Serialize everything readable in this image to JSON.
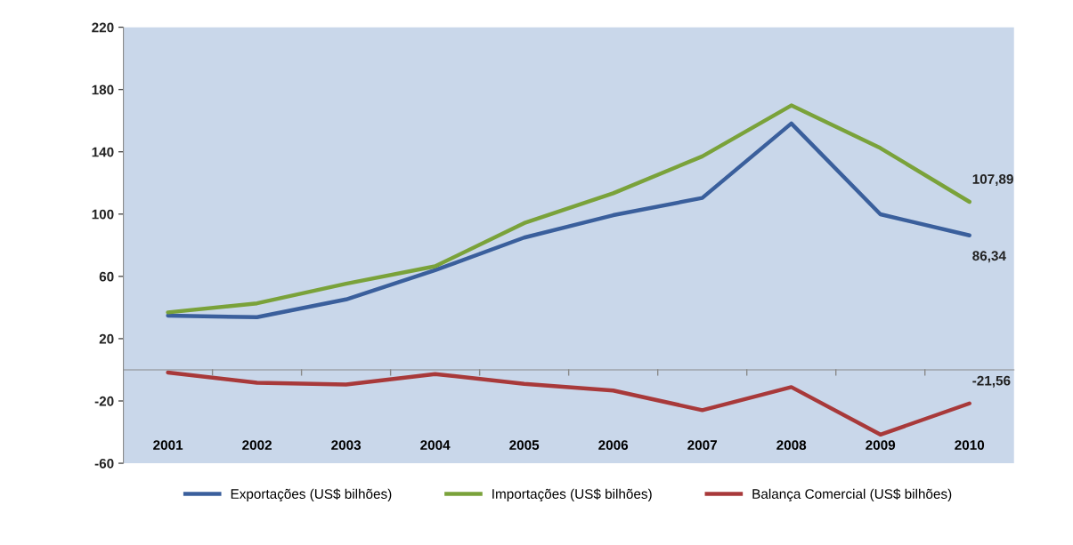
{
  "chart_data": {
    "type": "line",
    "categories": [
      "2001",
      "2002",
      "2003",
      "2004",
      "2005",
      "2006",
      "2007",
      "2008",
      "2009",
      "2010"
    ],
    "series": [
      {
        "name": "Exportações (US$ bilhões)",
        "color": "#3a5f9c",
        "values": [
          34.8,
          33.8,
          45.2,
          64.0,
          84.9,
          99.3,
          110.4,
          158.2,
          99.9,
          86.34
        ],
        "value_labels": [
          null,
          null,
          null,
          null,
          null,
          null,
          null,
          null,
          null,
          "86,34"
        ]
      },
      {
        "name": "Importações (US$ bilhões)",
        "color": "#7aa23a",
        "values": [
          36.9,
          42.7,
          55.3,
          66.5,
          94.2,
          113.4,
          137.1,
          169.8,
          142.4,
          107.89
        ],
        "value_labels": [
          null,
          null,
          null,
          null,
          null,
          null,
          null,
          null,
          null,
          "107,89"
        ]
      },
      {
        "name": "Balança Comercial (US$ bilhões)",
        "color": "#a8393a",
        "values": [
          -1.7,
          -8.3,
          -9.4,
          -2.7,
          -9.0,
          -13.3,
          -25.9,
          -11.1,
          -41.6,
          -21.56
        ],
        "value_labels": [
          null,
          null,
          null,
          null,
          null,
          null,
          null,
          null,
          null,
          "-21,56"
        ]
      }
    ],
    "ylim": [
      -60,
      220
    ],
    "yticks": [
      -60,
      -20,
      20,
      60,
      100,
      140,
      180,
      220
    ],
    "grid": false,
    "legend": "bottom",
    "marker": "none",
    "line_style": "solid"
  }
}
